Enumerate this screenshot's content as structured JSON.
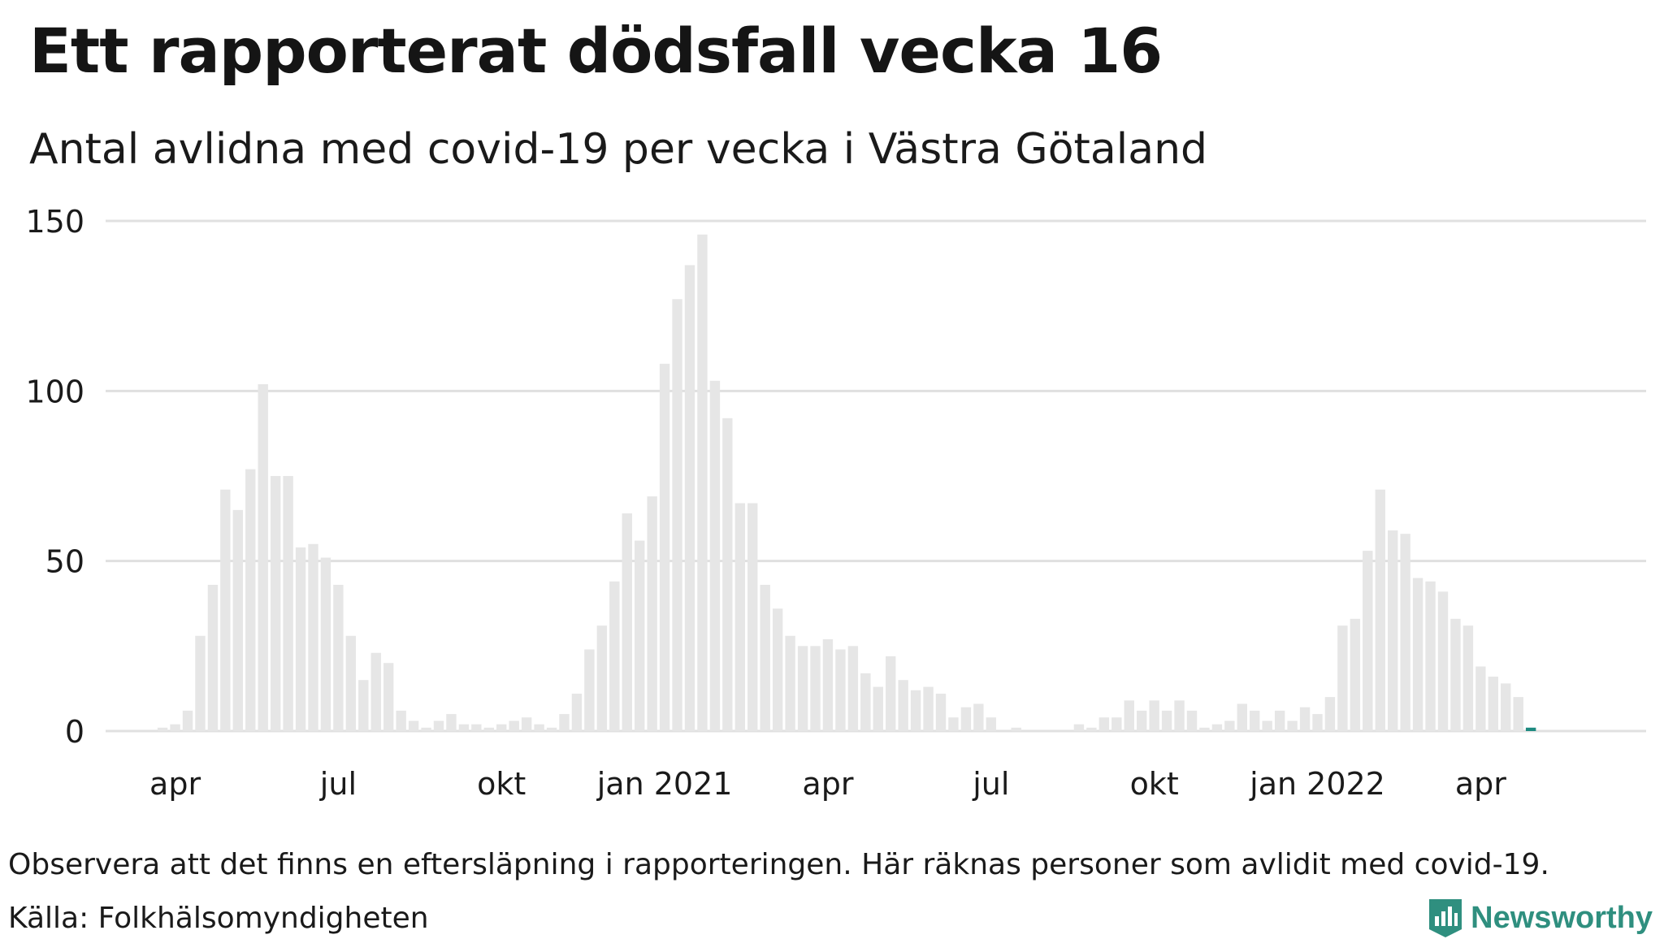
{
  "header": {
    "title": "Ett rapporterat dödsfall vecka 16",
    "subtitle": "Antal avlidna med covid-19 per vecka i Västra Götaland"
  },
  "footer": {
    "note": "Observera att det finns en eftersläpning i rapporteringen. Här räknas personer som avlidit med covid-19.",
    "source": "Källa: Folkhälsomyndigheten",
    "logo_text": "Newsworthy",
    "logo_icon": "newsworthy-bar-chart-icon"
  },
  "chart_data": {
    "type": "bar",
    "ylim": [
      0,
      150
    ],
    "yticks": [
      0,
      50,
      100,
      150
    ],
    "grid": true,
    "xtick_labels": [
      {
        "label": "apr",
        "index": 3
      },
      {
        "label": "jul",
        "index": 16
      },
      {
        "label": "okt",
        "index": 29
      },
      {
        "label": "jan 2021",
        "index": 42
      },
      {
        "label": "apr",
        "index": 55
      },
      {
        "label": "jul",
        "index": 68
      },
      {
        "label": "okt",
        "index": 81
      },
      {
        "label": "jan 2022",
        "index": 94
      },
      {
        "label": "apr",
        "index": 107
      }
    ],
    "values": [
      0,
      0,
      1,
      2,
      6,
      28,
      43,
      71,
      65,
      77,
      102,
      75,
      75,
      54,
      55,
      51,
      43,
      28,
      15,
      23,
      20,
      6,
      3,
      1,
      3,
      5,
      2,
      2,
      1,
      2,
      3,
      4,
      2,
      1,
      5,
      11,
      24,
      31,
      44,
      64,
      56,
      69,
      108,
      127,
      137,
      146,
      103,
      92,
      67,
      67,
      43,
      36,
      28,
      25,
      25,
      27,
      24,
      25,
      17,
      13,
      22,
      15,
      12,
      13,
      11,
      4,
      7,
      8,
      4,
      0,
      1,
      0,
      0,
      0,
      0,
      2,
      1,
      4,
      4,
      9,
      6,
      9,
      6,
      9,
      6,
      1,
      2,
      3,
      8,
      6,
      3,
      6,
      3,
      7,
      5,
      10,
      31,
      33,
      53,
      71,
      59,
      58,
      45,
      44,
      41,
      33,
      31,
      19,
      16,
      14,
      10,
      1
    ],
    "highlight_index": 111,
    "bar_color": "#e6e6e6",
    "highlight_color": "#1d8a80",
    "grid_color": "#e0e0e0"
  }
}
